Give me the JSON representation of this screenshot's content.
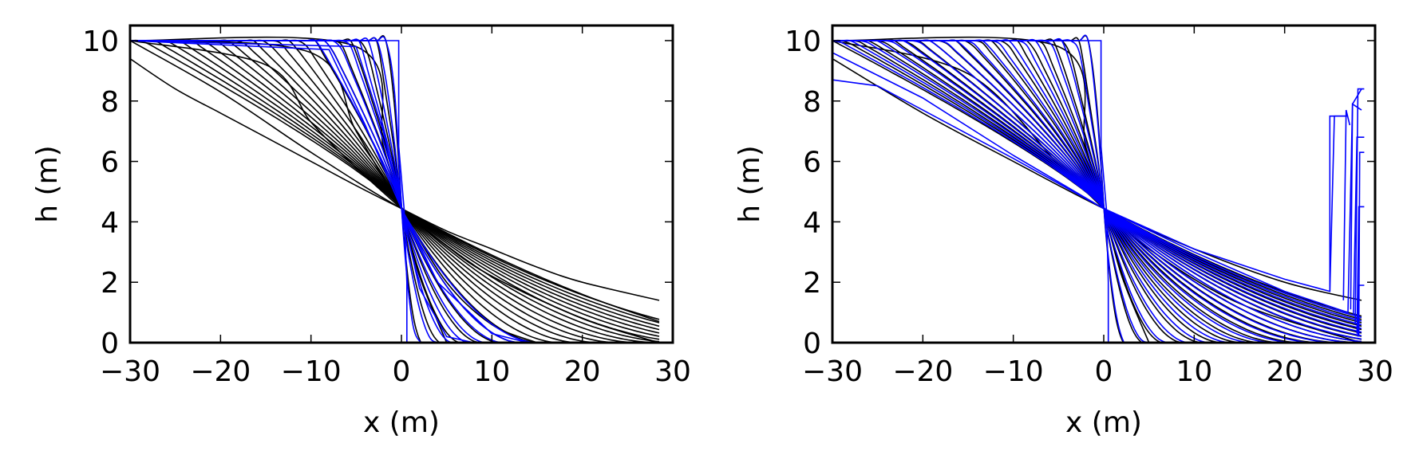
{
  "chart_data": [
    {
      "type": "line",
      "title": "",
      "xlabel": "x (m)",
      "ylabel": "h (m)",
      "xlim": [
        -30,
        30
      ],
      "ylim": [
        0,
        10.5
      ],
      "xticks": [
        "−30",
        "−20",
        "−10",
        "0",
        "10",
        "20",
        "30"
      ],
      "yticks": [
        "0",
        "2",
        "4",
        "6",
        "8",
        "10"
      ],
      "grid": false,
      "legend": "none",
      "colors": {
        "analytical": "#000000",
        "numerical": "#0000ff"
      },
      "series_groups": [
        {
          "color": "black",
          "kind": "dam-break profile family",
          "x_range": [
            -30,
            28.5
          ],
          "h_left": 10,
          "h_cross": 4.44,
          "curves": [
            {
              "x": [
                -30,
                -25,
                -20,
                -15,
                -10,
                -5,
                0,
                5,
                10,
                15,
                20,
                28.5
              ],
              "y": [
                9.4,
                8.4,
                7.6,
                6.8,
                6.0,
                5.2,
                4.44,
                3.7,
                3.1,
                2.5,
                2.0,
                1.4
              ]
            },
            {
              "x": [
                -30,
                -20,
                -10,
                0,
                10,
                20,
                28.5
              ],
              "y": [
                10.0,
                8.3,
                6.3,
                4.44,
                2.9,
                1.6,
                0.7
              ]
            },
            {
              "x": [
                -30,
                -15,
                -10,
                -5,
                0,
                5,
                10,
                20,
                28.5
              ],
              "y": [
                10.0,
                9.2,
                7.3,
                5.8,
                4.44,
                3.2,
                2.2,
                0.8,
                0.0
              ]
            },
            {
              "x": [
                -30,
                -10,
                -5,
                0,
                5,
                10,
                15
              ],
              "y": [
                10.0,
                9.6,
                7.0,
                4.44,
                2.0,
                0.6,
                0.0
              ]
            },
            {
              "x": [
                -30,
                -5,
                -2,
                0,
                2,
                5
              ],
              "y": [
                10.0,
                9.8,
                6.5,
                4.44,
                2.2,
                0.0
              ]
            }
          ]
        },
        {
          "color": "blue",
          "kind": "numerical profiles",
          "curves": [
            {
              "x": [
                -30,
                -0.3,
                -0.3,
                0.3,
                0.6,
                0.6
              ],
              "y": [
                10.0,
                10.0,
                6.5,
                4.4,
                2.0,
                0.0
              ]
            },
            {
              "x": [
                -30,
                -5,
                -2,
                0,
                2,
                5,
                8
              ],
              "y": [
                10.0,
                9.8,
                7.0,
                4.44,
                1.8,
                0.2,
                0.0
              ]
            },
            {
              "x": [
                -30,
                -8,
                -4,
                0,
                4,
                10,
                14
              ],
              "y": [
                10.0,
                9.7,
                7.2,
                4.44,
                2.0,
                0.3,
                0.0
              ]
            }
          ]
        }
      ]
    },
    {
      "type": "line",
      "title": "",
      "xlabel": "x (m)",
      "ylabel": "h (m)",
      "xlim": [
        -30,
        30
      ],
      "ylim": [
        0,
        10.5
      ],
      "xticks": [
        "−30",
        "−20",
        "−10",
        "0",
        "10",
        "20",
        "30"
      ],
      "yticks": [
        "0",
        "2",
        "4",
        "6",
        "8",
        "10"
      ],
      "grid": false,
      "legend": "none",
      "colors": {
        "analytical": "#000000",
        "numerical": "#0000ff"
      },
      "series_groups": [
        {
          "color": "black",
          "kind": "dam-break profile family",
          "x_range": [
            -30,
            28.5
          ],
          "h_left": 10,
          "h_cross": 4.44,
          "curves": [
            {
              "x": [
                -30,
                -20,
                -10,
                0,
                10,
                20,
                28.5
              ],
              "y": [
                9.4,
                7.6,
                6.0,
                4.44,
                3.1,
                2.0,
                1.4
              ]
            },
            {
              "x": [
                -30,
                -15,
                -5,
                0,
                5,
                15,
                28.5
              ],
              "y": [
                10.0,
                8.9,
                5.9,
                4.44,
                3.1,
                1.3,
                0.0
              ]
            },
            {
              "x": [
                -30,
                -5,
                -2,
                0,
                2,
                5
              ],
              "y": [
                10.0,
                9.8,
                6.5,
                4.44,
                2.2,
                0.0
              ]
            }
          ]
        },
        {
          "color": "blue",
          "kind": "numerical profiles with right-boundary reflection",
          "reflection": {
            "x": [
              25,
              28.5
            ],
            "y": [
              0.5,
              8.4
            ]
          },
          "curves": [
            {
              "x": [
                -30,
                -0.3,
                -0.3,
                0.3,
                0.5,
                0.5
              ],
              "y": [
                10.0,
                10.0,
                6.5,
                4.4,
                2.0,
                0.0
              ]
            },
            {
              "x": [
                -30,
                -25,
                -20,
                -10,
                0,
                10,
                20,
                25,
                25,
                27
              ],
              "y": [
                8.7,
                8.5,
                7.7,
                6.1,
                4.44,
                3.1,
                2.1,
                1.7,
                7.5,
                7.5
              ]
            },
            {
              "x": [
                -30,
                -20,
                -10,
                0,
                10,
                20,
                27,
                27.5,
                28.5
              ],
              "y": [
                9.6,
                8.1,
                6.2,
                4.44,
                3.0,
                1.7,
                1.0,
                7.9,
                8.4
              ]
            }
          ]
        }
      ]
    }
  ]
}
